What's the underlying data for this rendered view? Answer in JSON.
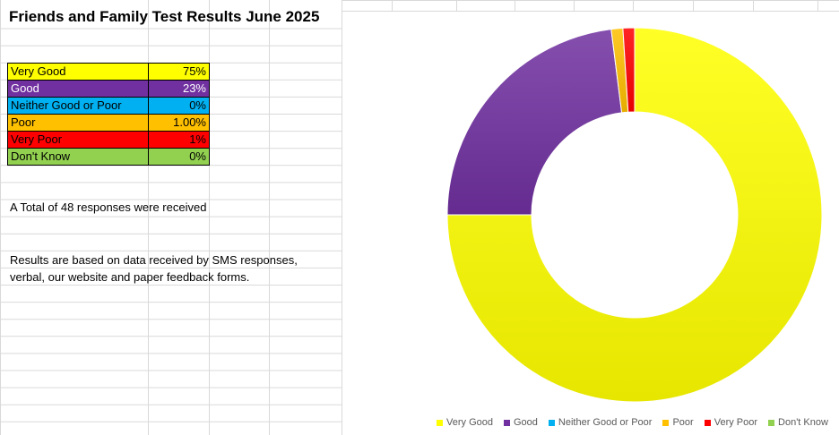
{
  "title": "Friends and Family Test Results June 2025",
  "table": [
    {
      "label": "Very Good",
      "value": "75%",
      "bg": "#FFFF00",
      "color": "#000000"
    },
    {
      "label": "Good",
      "value": "23%",
      "bg": "#7030A0",
      "color": "#FFFFFF"
    },
    {
      "label": "Neither Good or Poor",
      "value": "0%",
      "bg": "#00B0F0",
      "color": "#000000"
    },
    {
      "label": "Poor",
      "value": "1.00%",
      "bg": "#FFC000",
      "color": "#000000"
    },
    {
      "label": "Very Poor",
      "value": "1%",
      "bg": "#FF0000",
      "color": "#000000"
    },
    {
      "label": "Don't Know",
      "value": "0%",
      "bg": "#92D050",
      "color": "#000000"
    }
  ],
  "notes": {
    "total": "A Total of 48 responses were received",
    "basis_line1": "Results are based on data received by SMS responses,",
    "basis_line2": "verbal, our website and paper feedback forms."
  },
  "chart_data": {
    "type": "pie",
    "subtype": "doughnut",
    "legend_position": "bottom",
    "categories": [
      "Very Good",
      "Good",
      "Neither Good or Poor",
      "Poor",
      "Very Poor",
      "Don't Know"
    ],
    "values": [
      75,
      23,
      0,
      1,
      1,
      0
    ],
    "colors": [
      "#FFFF00",
      "#7030A0",
      "#00B0F0",
      "#FFC000",
      "#FF0000",
      "#92D050"
    ]
  }
}
